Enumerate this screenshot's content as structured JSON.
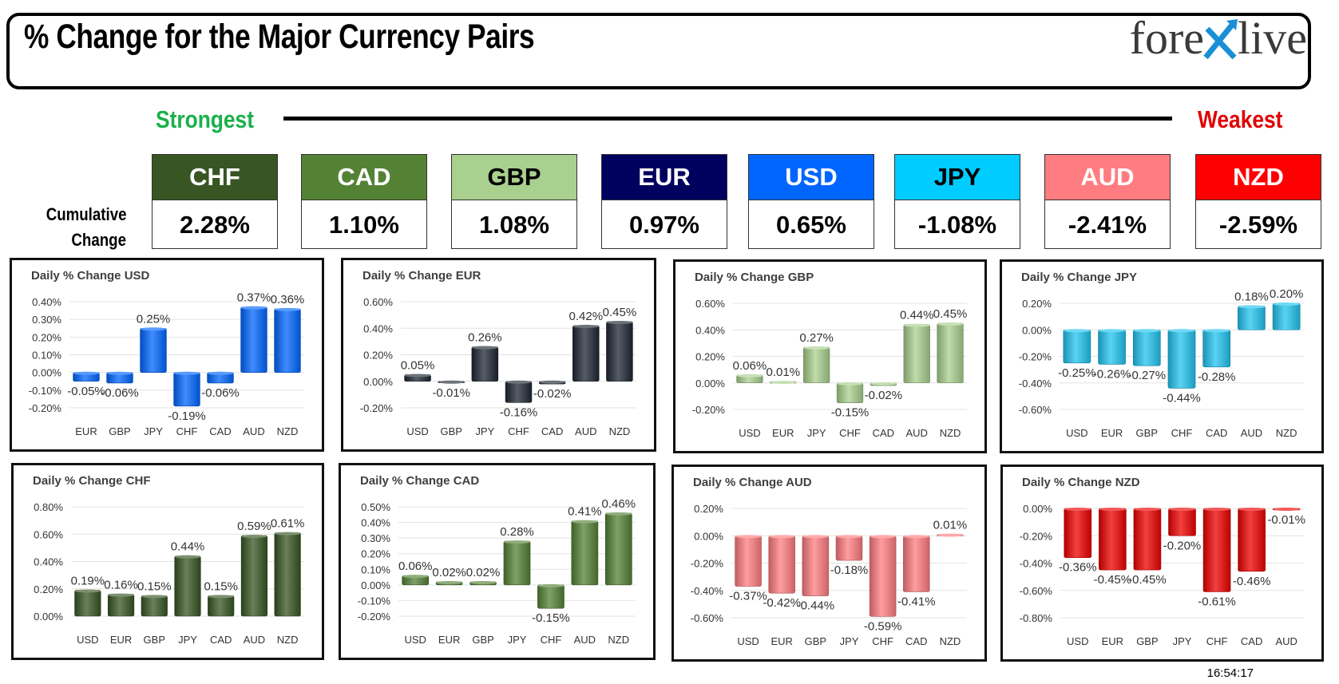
{
  "header": {
    "title": "% Change for the Major Currency Pairs",
    "logo_left": "fore",
    "logo_right": "live"
  },
  "range": {
    "strongest": "Strongest",
    "weakest": "Weakest"
  },
  "cumulative": {
    "label_line1": "Cumulative",
    "label_line2": "Change",
    "currencies": [
      {
        "code": "CHF",
        "value": "2.28%",
        "bg": "#375623",
        "fg": "#ffffff"
      },
      {
        "code": "CAD",
        "value": "1.10%",
        "bg": "#548235",
        "fg": "#ffffff"
      },
      {
        "code": "GBP",
        "value": "1.08%",
        "bg": "#a9d08e",
        "fg": "#000000"
      },
      {
        "code": "EUR",
        "value": "0.97%",
        "bg": "#00005e",
        "fg": "#ffffff"
      },
      {
        "code": "USD",
        "value": "0.65%",
        "bg": "#0066ff",
        "fg": "#ffffff"
      },
      {
        "code": "JPY",
        "value": "-1.08%",
        "bg": "#00ccff",
        "fg": "#000000"
      },
      {
        "code": "AUD",
        "value": "-2.41%",
        "bg": "#ff7c80",
        "fg": "#ffffff"
      },
      {
        "code": "NZD",
        "value": "-2.59%",
        "bg": "#ff0000",
        "fg": "#ffffff"
      }
    ]
  },
  "timestamp": "16:54:17",
  "chart_data": [
    {
      "type": "bar",
      "title": "Daily % Change USD",
      "categories": [
        "EUR",
        "GBP",
        "JPY",
        "CHF",
        "CAD",
        "AUD",
        "NZD"
      ],
      "values": [
        -0.05,
        -0.06,
        0.25,
        -0.19,
        -0.06,
        0.37,
        0.36
      ],
      "labels": [
        "-0.05%",
        "-0.06%",
        "0.25%",
        "-0.19%",
        "-0.06%",
        "0.37%",
        "0.36%"
      ],
      "yticks": [
        -0.2,
        -0.1,
        0,
        0.1,
        0.2,
        0.3,
        0.4
      ],
      "ylim": [
        -0.2,
        0.4
      ],
      "decimals": 2,
      "color": "#0066ff"
    },
    {
      "type": "bar",
      "title": "Daily % Change EUR",
      "categories": [
        "USD",
        "GBP",
        "JPY",
        "CHF",
        "CAD",
        "AUD",
        "NZD"
      ],
      "values": [
        0.05,
        -0.01,
        0.26,
        -0.16,
        -0.02,
        0.42,
        0.45
      ],
      "labels": [
        "0.05%",
        "-0.01%",
        "0.26%",
        "-0.16%",
        "-0.02%",
        "0.42%",
        "0.45%"
      ],
      "yticks": [
        -0.2,
        0,
        0.2,
        0.4,
        0.6
      ],
      "ylim": [
        -0.2,
        0.6
      ],
      "decimals": 2,
      "color": "#1f2733"
    },
    {
      "type": "bar",
      "title": "Daily % Change GBP",
      "categories": [
        "USD",
        "EUR",
        "JPY",
        "CHF",
        "CAD",
        "AUD",
        "NZD"
      ],
      "values": [
        0.06,
        0.01,
        0.27,
        -0.15,
        -0.02,
        0.44,
        0.45
      ],
      "labels": [
        "0.06%",
        "0.01%",
        "0.27%",
        "-0.15%",
        "-0.02%",
        "0.44%",
        "0.45%"
      ],
      "yticks": [
        -0.2,
        0,
        0.2,
        0.4,
        0.6
      ],
      "ylim": [
        -0.2,
        0.6
      ],
      "decimals": 2,
      "color": "#a9d08e"
    },
    {
      "type": "bar",
      "title": "Daily % Change JPY",
      "categories": [
        "USD",
        "EUR",
        "GBP",
        "CHF",
        "CAD",
        "AUD",
        "NZD"
      ],
      "values": [
        -0.25,
        -0.26,
        -0.27,
        -0.44,
        -0.28,
        0.18,
        0.2
      ],
      "labels": [
        "-0.25%",
        "-0.26%",
        "-0.27%",
        "-0.44%",
        "-0.28%",
        "0.18%",
        "0.20%"
      ],
      "yticks": [
        -0.6,
        -0.4,
        -0.2,
        0,
        0.2
      ],
      "ylim": [
        -0.6,
        0.2
      ],
      "decimals": 2,
      "color": "#22c4f0"
    },
    {
      "type": "bar",
      "title": "Daily % Change CHF",
      "categories": [
        "USD",
        "EUR",
        "GBP",
        "JPY",
        "CAD",
        "AUD",
        "NZD"
      ],
      "values": [
        0.19,
        0.16,
        0.15,
        0.44,
        0.15,
        0.59,
        0.61
      ],
      "labels": [
        "0.19%",
        "0.16%",
        "0.15%",
        "0.44%",
        "0.15%",
        "0.59%",
        "0.61%"
      ],
      "yticks": [
        0,
        0.2,
        0.4,
        0.6,
        0.8
      ],
      "ylim": [
        0,
        0.8
      ],
      "decimals": 2,
      "color": "#375623"
    },
    {
      "type": "bar",
      "title": "Daily % Change CAD",
      "categories": [
        "USD",
        "EUR",
        "GBP",
        "JPY",
        "CHF",
        "AUD",
        "NZD"
      ],
      "values": [
        0.06,
        0.02,
        0.02,
        0.28,
        -0.15,
        0.41,
        0.46
      ],
      "labels": [
        "0.06%",
        "0.02%",
        "0.02%",
        "0.28%",
        "-0.15%",
        "0.41%",
        "0.46%"
      ],
      "yticks": [
        -0.2,
        -0.1,
        0,
        0.1,
        0.2,
        0.3,
        0.4,
        0.5
      ],
      "ylim": [
        -0.2,
        0.5
      ],
      "decimals": 2,
      "color": "#548235"
    },
    {
      "type": "bar",
      "title": "Daily % Change AUD",
      "categories": [
        "USD",
        "EUR",
        "GBP",
        "JPY",
        "CHF",
        "CAD",
        "NZD"
      ],
      "values": [
        -0.37,
        -0.42,
        -0.44,
        -0.18,
        -0.59,
        -0.41,
        0.01
      ],
      "labels": [
        "-0.37%",
        "-0.42%",
        "-0.44%",
        "-0.18%",
        "-0.59%",
        "-0.41%",
        "0.01%"
      ],
      "yticks": [
        -0.6,
        -0.4,
        -0.2,
        0,
        0.2
      ],
      "ylim": [
        -0.6,
        0.2
      ],
      "decimals": 2,
      "color": "#ff7c80"
    },
    {
      "type": "bar",
      "title": "Daily % Change NZD",
      "categories": [
        "USD",
        "EUR",
        "GBP",
        "JPY",
        "CHF",
        "CAD",
        "AUD"
      ],
      "values": [
        -0.36,
        -0.45,
        -0.45,
        -0.2,
        -0.61,
        -0.46,
        -0.01
      ],
      "labels": [
        "-0.36%",
        "-0.45%",
        "-0.45%",
        "-0.20%",
        "-0.61%",
        "-0.46%",
        "-0.01%"
      ],
      "yticks": [
        -0.8,
        -0.6,
        -0.4,
        -0.2,
        0
      ],
      "ylim": [
        -0.8,
        0
      ],
      "decimals": 2,
      "color": "#ee0000"
    }
  ]
}
